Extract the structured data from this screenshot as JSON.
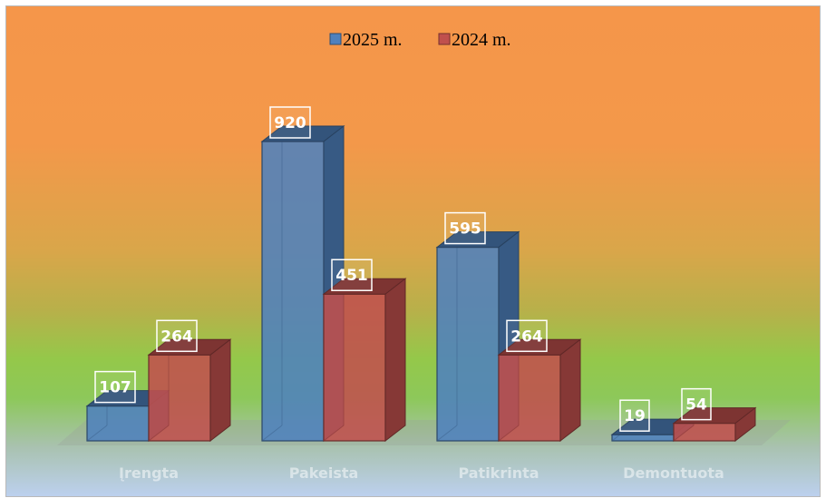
{
  "chart_data": {
    "type": "bar",
    "categories": [
      "Įrengta",
      "Pakeista",
      "Patikrinta",
      "Demontuota"
    ],
    "series": [
      {
        "name": "2025 m.",
        "values": [
          107,
          920,
          595,
          19
        ],
        "color": "#4f81bd"
      },
      {
        "name": "2024 m.",
        "values": [
          264,
          451,
          264,
          54
        ],
        "color": "#c0504d"
      }
    ],
    "title": "",
    "xlabel": "",
    "ylabel": "",
    "ylim": [
      0,
      1000
    ],
    "grid": false,
    "legend_position": "top-center",
    "three_d": true,
    "data_labels": true
  }
}
